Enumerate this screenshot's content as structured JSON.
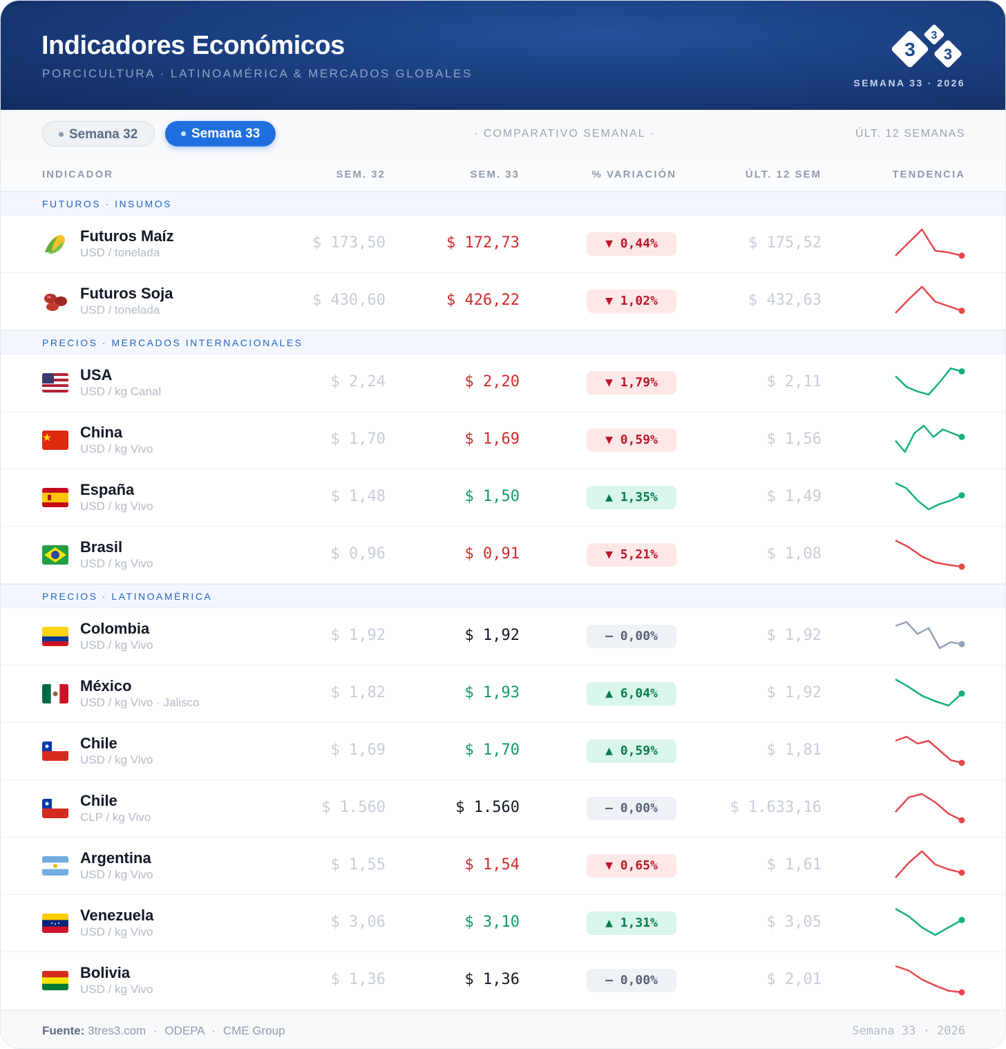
{
  "header": {
    "title": "Indicadores Económicos",
    "subtitle": "PORCICULTURA · LATINOAMÉRICA & MERCADOS GLOBALES",
    "week": "SEMANA 33 · 2026",
    "logo_digits": [
      "3",
      "3",
      "3"
    ]
  },
  "toolbar": {
    "tabs": [
      "Semana 32",
      "Semana 33"
    ],
    "active": 1,
    "center": "· COMPARATIVO SEMANAL ·",
    "right": "ÚLT. 12 SEMANAS"
  },
  "columns": [
    "INDICADOR",
    "SEM. 32",
    "SEM. 33",
    "% VARIACIÓN",
    "ÚLT. 12 SEM",
    "TENDENCIA"
  ],
  "sections": [
    {
      "title": "FUTUROS · INSUMOS",
      "rows": [
        {
          "name": "Futuros Maíz",
          "unit": "USD / tonelada",
          "sem32": "$ 173,50",
          "sem33": "$ 172,73",
          "variation": "▼ 0,44%",
          "last12": "$ 175,52",
          "color": "#d42a2a",
          "trend_color": "#e5484d",
          "trend": [
            0,
            8,
            16,
            3,
            2,
            0
          ]
        },
        {
          "name": "Futuros Soja",
          "unit": "USD / tonelada",
          "sem32": "$ 430,60",
          "sem33": "$ 426,22",
          "variation": "▼ 1,02%",
          "last12": "$ 432,63",
          "color": "#d42a2a",
          "trend_color": "#e5484d",
          "trend": [
            0,
            12,
            23,
            10,
            6,
            2
          ]
        }
      ]
    },
    {
      "title": "PRECIOS · MERCADOS INTERNACIONALES",
      "rows": [
        {
          "name": "USA",
          "unit": "USD / kg Canal",
          "sem32": "$ 2,24",
          "sem33": "$ 2,20",
          "variation": "▼ 1,79%",
          "last12": "$ 2,11",
          "color": "#d42a2a",
          "trend_color": "#16b07a",
          "trend": [
            12,
            5,
            2,
            0,
            8,
            17,
            15
          ]
        },
        {
          "name": "China",
          "unit": "USD / kg Vivo",
          "sem32": "$ 1,70",
          "sem33": "$ 1,69",
          "variation": "▼ 0,59%",
          "last12": "$ 1,56",
          "color": "#d42a2a",
          "trend_color": "#16b07a",
          "trend": [
            3,
            0,
            5,
            7,
            4,
            6,
            5,
            4
          ]
        },
        {
          "name": "España",
          "unit": "USD / kg Vivo",
          "sem32": "$ 1,48",
          "sem33": "$ 1,50",
          "variation": "▲ 1,35%",
          "last12": "$ 1,49",
          "color": "#12996a",
          "trend_color": "#16b07a",
          "trend": [
            15,
            12,
            5,
            0,
            3,
            5,
            8
          ]
        },
        {
          "name": "Brasil",
          "unit": "USD / kg Vivo",
          "sem32": "$ 0,96",
          "sem33": "$ 0,91",
          "variation": "▼ 5,21%",
          "last12": "$ 1,08",
          "color": "#d42a2a",
          "trend_color": "#e5484d",
          "trend": [
            31,
            23,
            12,
            5,
            2,
            0
          ]
        }
      ]
    },
    {
      "title": "PRECIOS · LATINOAMÉRICA",
      "rows": [
        {
          "name": "Colombia",
          "unit": "USD / kg Vivo",
          "sem32": "$ 1,92",
          "sem33": "$ 1,92",
          "variation": "– 0,00%",
          "last12": "$ 1,92",
          "color": "#111827",
          "trend_color": "#94a3b8",
          "trend": [
            11,
            13,
            7,
            10,
            0,
            3,
            2
          ]
        },
        {
          "name": "México",
          "unit": "USD / kg Vivo · Jalisco",
          "sem32": "$ 1,82",
          "sem33": "$ 1,93",
          "variation": "▲ 6,04%",
          "last12": "$ 1,92",
          "color": "#12996a",
          "trend_color": "#16b07a",
          "trend": [
            24,
            17,
            9,
            4,
            0,
            11
          ]
        },
        {
          "name": "Chile",
          "unit": "USD / kg Vivo",
          "sem32": "$ 1,69",
          "sem33": "$ 1,70",
          "variation": "▲ 0,59%",
          "last12": "$ 1,81",
          "color": "#12996a",
          "trend_color": "#e5484d",
          "trend": [
            16,
            19,
            14,
            16,
            9,
            2,
            0
          ]
        },
        {
          "name": "Chile",
          "unit": "CLP / kg Vivo",
          "sem32": "$ 1.560",
          "sem33": "$ 1.560",
          "variation": "– 0,00%",
          "last12": "$ 1.633,16",
          "color": "#111827",
          "trend_color": "#e5484d",
          "trend": [
            5,
            14,
            16,
            11,
            4,
            0
          ]
        },
        {
          "name": "Argentina",
          "unit": "USD / kg Vivo",
          "sem32": "$ 1,55",
          "sem33": "$ 1,54",
          "variation": "▼ 0,65%",
          "last12": "$ 1,61",
          "color": "#d42a2a",
          "trend_color": "#e5484d",
          "trend": [
            0,
            9,
            16,
            8,
            5,
            3
          ]
        },
        {
          "name": "Venezuela",
          "unit": "USD / kg Vivo",
          "sem32": "$ 3,06",
          "sem33": "$ 3,10",
          "variation": "▲ 1,31%",
          "last12": "$ 3,05",
          "color": "#12996a",
          "trend_color": "#16b07a",
          "trend": [
            14,
            10,
            4,
            0,
            4,
            8
          ]
        },
        {
          "name": "Bolivia",
          "unit": "USD / kg Vivo",
          "sem32": "$ 1,36",
          "sem33": "$ 1,36",
          "variation": "– 0,00%",
          "last12": "$ 2,01",
          "color": "#111827",
          "trend_color": "#e5484d",
          "trend": [
            35,
            29,
            17,
            9,
            2,
            0
          ]
        }
      ]
    }
  ],
  "footer": {
    "source_label": "Fuente:",
    "sources": [
      "3tres3.com",
      "ODEPA",
      "CME Group"
    ],
    "separator": "·",
    "right": "Semana 33 · 2026"
  }
}
